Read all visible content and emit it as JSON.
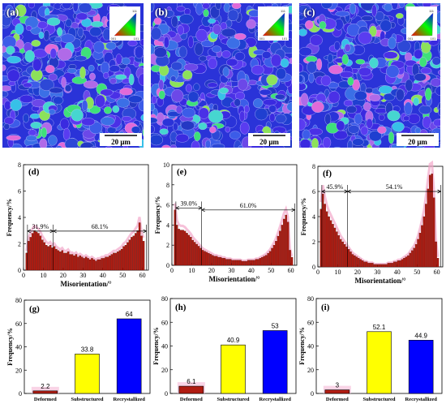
{
  "maps": [
    {
      "label": "(a)",
      "scale": "20 μm"
    },
    {
      "label": "(b)",
      "scale": "20 μm"
    },
    {
      "label": "(c)",
      "scale": "20 μm"
    }
  ],
  "ipf_labels": [
    "111",
    "001",
    "101"
  ],
  "colors": {
    "bar_red": "#b01c12",
    "bar_edge": "#5a0d08",
    "fit_pink": "#f2a6c9",
    "yellow": "#ffff00",
    "blue": "#0000ff",
    "map_blue": "#2a33d8"
  },
  "chart_data": [
    {
      "type": "bar",
      "panel": "(d)",
      "xlabel": "Misorientation/°",
      "ylabel": "Frequency/%",
      "xlim": [
        0,
        63
      ],
      "ylim": [
        0,
        8
      ],
      "xticks": [
        0,
        10,
        20,
        30,
        40,
        50,
        60
      ],
      "yticks": [
        0,
        2,
        4,
        6,
        8
      ],
      "annotations": [
        {
          "text": "31.9%",
          "from": 2,
          "to": 15
        },
        {
          "text": "68.1%",
          "from": 15,
          "to": 62
        }
      ],
      "x": [
        2,
        3,
        4,
        5,
        6,
        7,
        8,
        9,
        10,
        11,
        12,
        13,
        14,
        15,
        16,
        17,
        18,
        19,
        20,
        21,
        22,
        23,
        24,
        25,
        26,
        27,
        28,
        29,
        30,
        31,
        32,
        33,
        34,
        35,
        36,
        37,
        38,
        39,
        40,
        41,
        42,
        43,
        44,
        45,
        46,
        47,
        48,
        49,
        50,
        51,
        52,
        53,
        54,
        55,
        56,
        57,
        58,
        59,
        60,
        61
      ],
      "values": [
        1.3,
        2.2,
        2.5,
        2.8,
        3.0,
        2.9,
        2.8,
        2.6,
        2.3,
        2.1,
        1.9,
        1.8,
        1.9,
        1.7,
        1.8,
        1.6,
        1.5,
        1.4,
        1.5,
        1.3,
        1.3,
        1.4,
        1.2,
        1.2,
        1.1,
        1.2,
        1.0,
        1.1,
        1.0,
        0.9,
        1.0,
        0.9,
        0.8,
        0.9,
        0.8,
        0.7,
        0.8,
        0.8,
        0.9,
        0.9,
        1.0,
        1.0,
        1.1,
        1.2,
        1.3,
        1.3,
        1.4,
        1.5,
        1.6,
        1.8,
        1.9,
        2.1,
        2.3,
        2.5,
        2.6,
        2.8,
        3.0,
        3.6,
        2.6,
        2.2
      ]
    },
    {
      "type": "bar",
      "panel": "(e)",
      "xlabel": "Misorientation/°",
      "ylabel": "Frequency/%",
      "xlim": [
        0,
        63
      ],
      "ylim": [
        0,
        10
      ],
      "xticks": [
        0,
        10,
        20,
        30,
        40,
        50,
        60
      ],
      "yticks": [
        0,
        2,
        4,
        6,
        8,
        10
      ],
      "annotations": [
        {
          "text": "39.0%",
          "from": 2,
          "to": 15
        },
        {
          "text": "61.0%",
          "from": 15,
          "to": 62
        }
      ],
      "x": [
        2,
        3,
        4,
        5,
        6,
        7,
        8,
        9,
        10,
        11,
        12,
        13,
        14,
        15,
        16,
        17,
        18,
        19,
        20,
        21,
        22,
        23,
        24,
        25,
        26,
        27,
        28,
        29,
        30,
        31,
        32,
        33,
        34,
        35,
        36,
        37,
        38,
        39,
        40,
        41,
        42,
        43,
        44,
        45,
        46,
        47,
        48,
        49,
        50,
        51,
        52,
        53,
        54,
        55,
        56,
        57,
        58,
        59,
        60,
        61
      ],
      "values": [
        5.5,
        4.0,
        3.6,
        3.5,
        3.5,
        3.4,
        3.2,
        3.0,
        2.8,
        2.5,
        2.3,
        2.1,
        1.9,
        1.7,
        1.5,
        1.4,
        1.3,
        1.2,
        1.1,
        1.0,
        0.9,
        0.9,
        0.8,
        0.8,
        0.7,
        0.7,
        0.6,
        0.6,
        0.6,
        0.5,
        0.5,
        0.5,
        0.5,
        0.5,
        0.4,
        0.4,
        0.4,
        0.5,
        0.5,
        0.5,
        0.5,
        0.6,
        0.6,
        0.7,
        0.8,
        0.9,
        1.0,
        1.2,
        1.4,
        1.7,
        2.0,
        2.4,
        2.9,
        3.4,
        4.0,
        4.6,
        5.0,
        4.3,
        1.5,
        0.8
      ]
    },
    {
      "type": "bar",
      "panel": "(f)",
      "xlabel": "Misorientation/°",
      "ylabel": "Frequency/%",
      "xlim": [
        0,
        63
      ],
      "ylim": [
        0,
        8
      ],
      "xticks": [
        0,
        10,
        20,
        30,
        40,
        50,
        60
      ],
      "yticks": [
        0,
        2,
        4,
        6,
        8
      ],
      "annotations": [
        {
          "text": "45.9%",
          "from": 2,
          "to": 15
        },
        {
          "text": "54.1%",
          "from": 15,
          "to": 62
        }
      ],
      "x": [
        2,
        3,
        4,
        5,
        6,
        7,
        8,
        9,
        10,
        11,
        12,
        13,
        14,
        15,
        16,
        17,
        18,
        19,
        20,
        21,
        22,
        23,
        24,
        25,
        26,
        27,
        28,
        29,
        30,
        31,
        32,
        33,
        34,
        35,
        36,
        37,
        38,
        39,
        40,
        41,
        42,
        43,
        44,
        45,
        46,
        47,
        48,
        49,
        50,
        51,
        52,
        53,
        54,
        55,
        56,
        57,
        58,
        59,
        60,
        61
      ],
      "values": [
        4.6,
        5.8,
        5.0,
        4.4,
        4.0,
        3.7,
        3.4,
        3.1,
        2.8,
        2.5,
        2.2,
        2.0,
        1.8,
        1.6,
        1.4,
        1.2,
        1.0,
        0.9,
        0.8,
        0.7,
        0.6,
        0.5,
        0.4,
        0.4,
        0.3,
        0.3,
        0.3,
        0.2,
        0.2,
        0.2,
        0.2,
        0.2,
        0.2,
        0.2,
        0.3,
        0.3,
        0.3,
        0.4,
        0.4,
        0.5,
        0.5,
        0.6,
        0.7,
        0.8,
        0.9,
        1.1,
        1.3,
        1.5,
        1.8,
        2.2,
        2.7,
        3.3,
        4.0,
        5.0,
        6.2,
        7.3,
        7.4,
        5.5,
        2.0,
        0.7
      ]
    },
    {
      "type": "bar",
      "panel": "(g)",
      "ylabel": "Frequency/%",
      "ylim": [
        0,
        80
      ],
      "yticks": [
        0,
        20,
        40,
        60,
        80
      ],
      "categories": [
        "Deformed",
        "Substructured",
        "Recrystallized"
      ],
      "values": [
        2.2,
        33.8,
        64
      ],
      "labels": [
        "2.2",
        "33.8",
        "64"
      ]
    },
    {
      "type": "bar",
      "panel": "(h)",
      "ylabel": "Frequency/%",
      "ylim": [
        0,
        80
      ],
      "yticks": [
        0,
        20,
        40,
        60,
        80
      ],
      "categories": [
        "Deformed",
        "Substructured",
        "Recrystallized"
      ],
      "values": [
        6.1,
        40.9,
        53
      ],
      "labels": [
        "6.1",
        "40.9",
        "53"
      ]
    },
    {
      "type": "bar",
      "panel": "(i)",
      "ylabel": "Frequency/%",
      "ylim": [
        0,
        80
      ],
      "yticks": [
        0,
        20,
        40,
        60,
        80
      ],
      "categories": [
        "Deformed",
        "Substructured",
        "Recrystallized"
      ],
      "values": [
        3,
        52.1,
        44.9
      ],
      "labels": [
        "3",
        "52.1",
        "44.9"
      ]
    }
  ]
}
